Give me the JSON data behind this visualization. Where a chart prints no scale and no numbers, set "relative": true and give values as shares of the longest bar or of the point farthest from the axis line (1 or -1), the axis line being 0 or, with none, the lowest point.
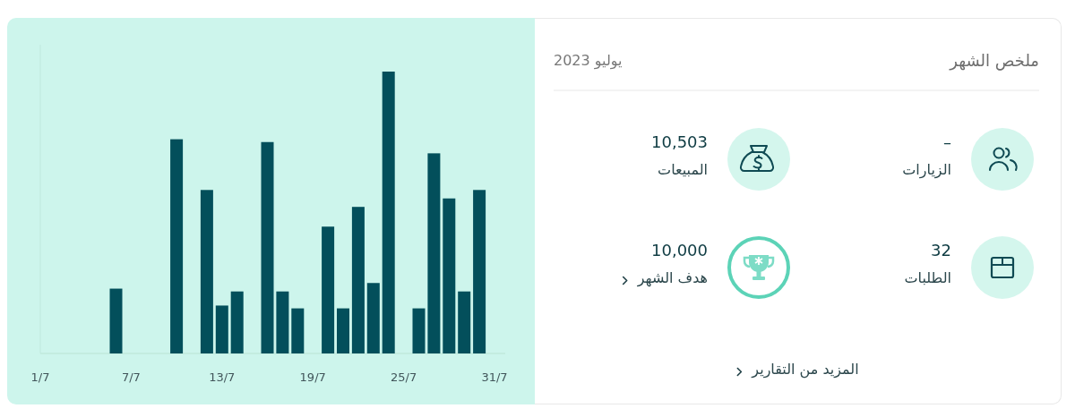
{
  "chart_data": [
    {
      "type": "bar",
      "relative": true,
      "color": "#034f5b",
      "categories": [
        "1/7",
        null,
        null,
        null,
        null,
        null,
        "7/7",
        null,
        null,
        null,
        null,
        null,
        "13/7",
        null,
        null,
        null,
        null,
        null,
        "19/7",
        null,
        null,
        null,
        null,
        null,
        "25/7",
        null,
        null,
        null,
        null,
        null,
        "31/7"
      ],
      "values": [
        null,
        null,
        null,
        null,
        null,
        0.23,
        null,
        null,
        null,
        0.76,
        null,
        0.58,
        0.17,
        0.22,
        null,
        0.75,
        0.22,
        0.16,
        null,
        0.45,
        0.16,
        0.52,
        0.25,
        1,
        null,
        0.16,
        0.71,
        0.55,
        0.22,
        0.58,
        null
      ]
    },
    {
      "type": "other",
      "title": "ملخص الشهر",
      "subtitle": "يوليو 2023",
      "annotations": [
        "–",
        "الزيارات",
        "10,503",
        "المبيعات",
        "32",
        "الطلبات",
        "10,000",
        "هدف الشهر",
        "المزيد من التقارير"
      ]
    }
  ]
}
